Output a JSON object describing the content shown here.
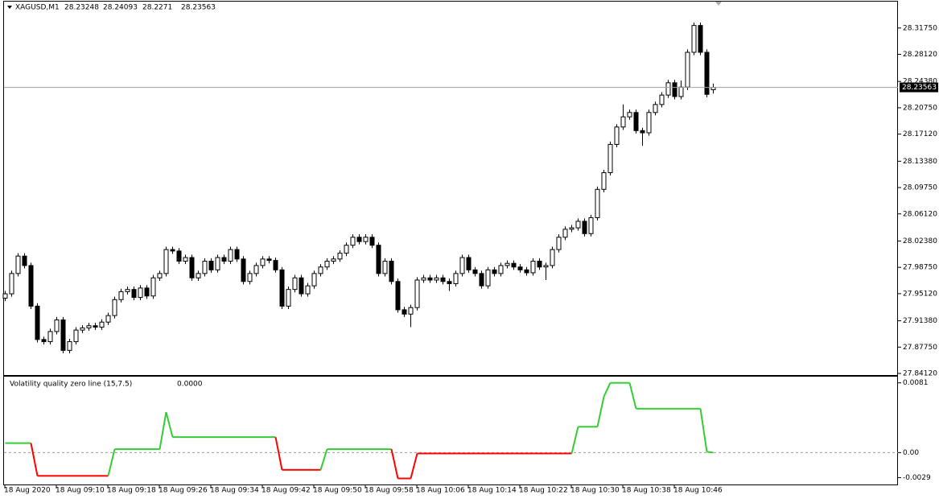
{
  "chart_data": [
    {
      "type": "candlestick",
      "title": "XAGUSD,M1",
      "categories": [
        "18 Aug 2020",
        null,
        null,
        null,
        null,
        null,
        null,
        null,
        "18 Aug 09:10",
        null,
        null,
        null,
        null,
        null,
        null,
        null,
        "18 Aug 09:18",
        null,
        null,
        null,
        null,
        null,
        null,
        null,
        "18 Aug 09:26",
        null,
        null,
        null,
        null,
        null,
        null,
        null,
        "18 Aug 09:34",
        null,
        null,
        null,
        null,
        null,
        null,
        null,
        "18 Aug 09:42",
        null,
        null,
        null,
        null,
        null,
        null,
        null,
        "18 Aug 09:50",
        null,
        null,
        null,
        null,
        null,
        null,
        null,
        "18 Aug 09:58",
        null,
        null,
        null,
        null,
        null,
        null,
        null,
        "18 Aug 10:06",
        null,
        null,
        null,
        null,
        null,
        null,
        null,
        "18 Aug 10:14",
        null,
        null,
        null,
        null,
        null,
        null,
        null,
        "18 Aug 10:22",
        null,
        null,
        null,
        null,
        null,
        null,
        null,
        "18 Aug 10:30",
        null,
        null,
        null,
        null,
        null,
        null,
        null,
        "18 Aug 10:38",
        null,
        null,
        null,
        null,
        null,
        null,
        null,
        "18 Aug 10:46",
        null,
        null,
        null,
        null,
        null,
        null
      ],
      "open": [
        27.945,
        27.951,
        27.979,
        28.003,
        27.99,
        27.934,
        27.888,
        27.885,
        27.899,
        27.915,
        27.873,
        27.885,
        27.901,
        27.904,
        27.907,
        27.905,
        27.912,
        27.921,
        27.943,
        27.954,
        27.957,
        27.946,
        27.959,
        27.948,
        27.973,
        27.979,
        28.012,
        28.01,
        27.996,
        28.001,
        27.973,
        27.979,
        27.996,
        27.984,
        28.001,
        27.996,
        28.012,
        27.999,
        27.968,
        27.979,
        27.99,
        27.999,
        27.997,
        27.984,
        27.934,
        27.957,
        27.973,
        27.951,
        27.962,
        27.979,
        27.988,
        27.996,
        27.999,
        28.007,
        28.018,
        28.029,
        28.023,
        28.029,
        28.018,
        27.979,
        27.996,
        27.968,
        27.929,
        27.923,
        27.932,
        27.97,
        27.973,
        27.97,
        27.973,
        27.968,
        27.965,
        27.979,
        28.001,
        27.984,
        27.979,
        27.962,
        27.984,
        27.979,
        27.99,
        27.993,
        27.988,
        27.984,
        27.98,
        27.996,
        27.988,
        27.99,
        28.012,
        28.029,
        28.04,
        28.042,
        28.051,
        28.034,
        28.056,
        28.095,
        28.118,
        28.157,
        28.181,
        28.195,
        28.201,
        28.176,
        28.173,
        28.201,
        28.212,
        28.225,
        28.242,
        28.223,
        28.236,
        28.284,
        28.321,
        28.284,
        28.23248
      ],
      "high": [
        27.955,
        27.983,
        28.007,
        28.007,
        27.994,
        27.938,
        27.892,
        27.903,
        27.919,
        27.919,
        27.889,
        27.905,
        27.908,
        27.911,
        27.911,
        27.916,
        27.925,
        27.947,
        27.958,
        27.961,
        27.961,
        27.963,
        27.963,
        27.977,
        27.983,
        28.016,
        28.016,
        28.014,
        28.005,
        28.005,
        27.983,
        28.0,
        28.0,
        28.005,
        28.005,
        28.016,
        28.016,
        28.003,
        27.983,
        27.994,
        28.003,
        28.003,
        28.001,
        27.988,
        27.961,
        27.977,
        27.977,
        27.966,
        27.983,
        27.992,
        28.0,
        28.003,
        28.011,
        28.022,
        28.033,
        28.033,
        28.033,
        28.033,
        28.022,
        28.0,
        28.0,
        27.972,
        27.933,
        27.936,
        27.974,
        27.977,
        27.977,
        27.977,
        27.977,
        27.972,
        27.983,
        28.005,
        28.005,
        27.988,
        27.983,
        27.988,
        27.988,
        27.994,
        27.997,
        27.997,
        27.992,
        27.988,
        28.0,
        28.0,
        27.994,
        28.016,
        28.033,
        28.044,
        28.046,
        28.055,
        28.055,
        28.06,
        28.099,
        28.122,
        28.161,
        28.185,
        28.212,
        28.205,
        28.205,
        28.18,
        28.205,
        28.216,
        28.229,
        28.246,
        28.246,
        28.245,
        28.288,
        28.325,
        28.325,
        28.288,
        28.24093
      ],
      "low": [
        27.941,
        27.947,
        27.975,
        27.986,
        27.93,
        27.884,
        27.881,
        27.881,
        27.895,
        27.869,
        27.869,
        27.881,
        27.897,
        27.9,
        27.901,
        27.901,
        27.908,
        27.917,
        27.939,
        27.95,
        27.942,
        27.942,
        27.944,
        27.944,
        27.969,
        27.975,
        28.006,
        27.992,
        27.992,
        27.969,
        27.969,
        27.975,
        27.98,
        27.98,
        27.992,
        27.992,
        27.995,
        27.964,
        27.964,
        27.975,
        27.986,
        27.993,
        27.98,
        27.93,
        27.93,
        27.953,
        27.947,
        27.947,
        27.958,
        27.975,
        27.984,
        27.992,
        27.995,
        28.003,
        28.014,
        28.019,
        28.019,
        28.014,
        27.975,
        27.975,
        27.964,
        27.925,
        27.919,
        27.905,
        27.928,
        27.966,
        27.966,
        27.966,
        27.964,
        27.955,
        27.961,
        27.975,
        27.98,
        27.975,
        27.958,
        27.958,
        27.975,
        27.975,
        27.986,
        27.984,
        27.98,
        27.976,
        27.976,
        27.984,
        27.97,
        27.986,
        28.008,
        28.025,
        28.036,
        28.038,
        28.03,
        28.03,
        28.052,
        28.091,
        28.114,
        28.153,
        28.177,
        28.191,
        28.172,
        28.155,
        28.169,
        28.197,
        28.208,
        28.221,
        28.219,
        28.219,
        28.232,
        28.28,
        28.28,
        28.222,
        28.2271
      ],
      "close": [
        27.951,
        27.979,
        28.003,
        27.99,
        27.934,
        27.888,
        27.885,
        27.899,
        27.915,
        27.873,
        27.885,
        27.901,
        27.904,
        27.907,
        27.905,
        27.912,
        27.921,
        27.943,
        27.954,
        27.957,
        27.946,
        27.959,
        27.948,
        27.973,
        27.979,
        28.012,
        28.01,
        27.996,
        28.001,
        27.973,
        27.979,
        27.996,
        27.984,
        28.001,
        27.996,
        28.012,
        27.999,
        27.968,
        27.979,
        27.99,
        27.999,
        27.997,
        27.984,
        27.934,
        27.957,
        27.973,
        27.951,
        27.962,
        27.979,
        27.988,
        27.996,
        27.999,
        28.007,
        28.018,
        28.029,
        28.023,
        28.029,
        28.018,
        27.979,
        27.996,
        27.968,
        27.929,
        27.923,
        27.932,
        27.97,
        27.973,
        27.97,
        27.973,
        27.968,
        27.965,
        27.979,
        28.001,
        27.984,
        27.979,
        27.962,
        27.984,
        27.979,
        27.99,
        27.993,
        27.988,
        27.984,
        27.98,
        27.996,
        27.988,
        27.99,
        28.012,
        28.029,
        28.04,
        28.042,
        28.051,
        28.034,
        28.056,
        28.095,
        28.118,
        28.157,
        28.181,
        28.195,
        28.201,
        28.176,
        28.173,
        28.201,
        28.212,
        28.225,
        28.242,
        28.223,
        28.236,
        28.284,
        28.321,
        28.284,
        28.226,
        28.23563
      ],
      "up_color": "#ffffff",
      "down_color": "#000000",
      "ylim": [
        27.839,
        28.355
      ],
      "yticks": [
        {
          "value": 28.3175,
          "label": "28.31750"
        },
        {
          "value": 28.2812,
          "label": "28.28120"
        },
        {
          "value": 28.2438,
          "label": "28.24380"
        },
        {
          "value": 28.2075,
          "label": "28.20750"
        },
        {
          "value": 28.1712,
          "label": "28.17120"
        },
        {
          "value": 28.1338,
          "label": "28.13380"
        },
        {
          "value": 28.0975,
          "label": "28.09750"
        },
        {
          "value": 28.0612,
          "label": "28.06120"
        },
        {
          "value": 28.0238,
          "label": "28.02380"
        },
        {
          "value": 27.9875,
          "label": "27.98750"
        },
        {
          "value": 27.9512,
          "label": "27.95120"
        },
        {
          "value": 27.9138,
          "label": "27.91380"
        },
        {
          "value": 27.8775,
          "label": "27.87750"
        },
        {
          "value": 27.8412,
          "label": "27.84120"
        }
      ]
    },
    {
      "type": "line",
      "title": "Volatility quality zero line (15,7.5)",
      "current_value_label": "0.0000",
      "values": [
        0.0011,
        0.0011,
        0.0011,
        0.0011,
        0.0011,
        -0.0027,
        -0.0027,
        -0.0027,
        -0.0027,
        -0.0027,
        -0.0027,
        -0.0027,
        -0.0027,
        -0.0027,
        -0.0027,
        -0.0027,
        -0.0027,
        0.0004,
        0.0004,
        0.0004,
        0.0004,
        0.0004,
        0.0004,
        0.0004,
        0.0004,
        0.0047,
        0.0018,
        0.0018,
        0.0018,
        0.0018,
        0.0018,
        0.0018,
        0.0018,
        0.0018,
        0.0018,
        0.0018,
        0.0018,
        0.0018,
        0.0018,
        0.0018,
        0.0018,
        0.0018,
        0.0018,
        -0.002,
        -0.002,
        -0.002,
        -0.002,
        -0.002,
        -0.002,
        -0.002,
        0.0004,
        0.0004,
        0.0004,
        0.0004,
        0.0004,
        0.0004,
        0.0004,
        0.0004,
        0.0004,
        0.0004,
        0.0004,
        -0.003,
        -0.003,
        -0.003,
        -0.0001,
        -0.0001,
        -0.0001,
        -0.0001,
        -0.0001,
        -0.0001,
        -0.0001,
        -0.0001,
        -0.0001,
        -0.0001,
        -0.0001,
        -0.0001,
        -0.0001,
        -0.0001,
        -0.0001,
        -0.0001,
        -0.0001,
        -0.0001,
        -0.0001,
        -0.0001,
        -0.0001,
        -0.0001,
        -0.0001,
        -0.0001,
        -0.0001,
        0.003,
        0.003,
        0.003,
        0.003,
        0.0065,
        0.0081,
        0.0081,
        0.0081,
        0.0081,
        0.0051,
        0.0051,
        0.0051,
        0.0051,
        0.0051,
        0.0051,
        0.0051,
        0.0051,
        0.0051,
        0.0051,
        0.0051,
        0.0001,
        0
      ],
      "colors": [
        "limegreen",
        "limegreen",
        "limegreen",
        "limegreen",
        "limegreen",
        "red",
        "red",
        "red",
        "red",
        "red",
        "red",
        "red",
        "red",
        "red",
        "red",
        "red",
        "red",
        "limegreen",
        "limegreen",
        "limegreen",
        "limegreen",
        "limegreen",
        "limegreen",
        "limegreen",
        "limegreen",
        "limegreen",
        "limegreen",
        "limegreen",
        "limegreen",
        "limegreen",
        "limegreen",
        "limegreen",
        "limegreen",
        "limegreen",
        "limegreen",
        "limegreen",
        "limegreen",
        "limegreen",
        "limegreen",
        "limegreen",
        "limegreen",
        "limegreen",
        "limegreen",
        "red",
        "red",
        "red",
        "red",
        "red",
        "red",
        "red",
        "limegreen",
        "limegreen",
        "limegreen",
        "limegreen",
        "limegreen",
        "limegreen",
        "limegreen",
        "limegreen",
        "limegreen",
        "limegreen",
        "limegreen",
        "red",
        "red",
        "red",
        "red",
        "red",
        "red",
        "red",
        "red",
        "red",
        "red",
        "red",
        "red",
        "red",
        "red",
        "red",
        "red",
        "red",
        "red",
        "red",
        "red",
        "red",
        "red",
        "red",
        "red",
        "red",
        "red",
        "red",
        "red",
        "limegreen",
        "limegreen",
        "limegreen",
        "limegreen",
        "limegreen",
        "limegreen",
        "limegreen",
        "limegreen",
        "limegreen",
        "limegreen",
        "limegreen",
        "limegreen",
        "limegreen",
        "limegreen",
        "limegreen",
        "limegreen",
        "limegreen",
        "limegreen",
        "limegreen",
        "limegreen",
        "limegreen",
        "limegreen"
      ],
      "ylim": [
        -0.0037,
        0.00882
      ],
      "yticks": [
        0.0081,
        {
          "value": 0,
          "label": "0.00"
        },
        -0.0029
      ],
      "zero_line": true
    }
  ]
}
